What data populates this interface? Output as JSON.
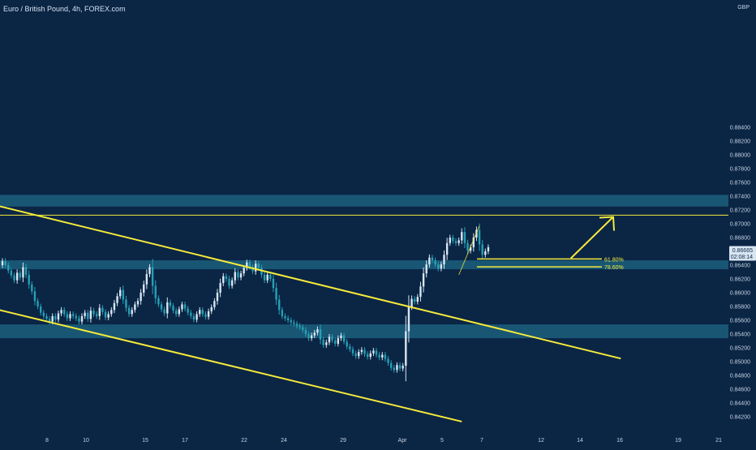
{
  "header": {
    "title": "Euro / British Pound, 4h, FOREX.com"
  },
  "colors": {
    "background": "#0b2545",
    "zone": "#1b5f7c",
    "trendline": "#f5ea3b",
    "candle_up": "#d8e6f2",
    "candle_down": "#26a0b4",
    "price_tag": "#d8e6f2"
  },
  "chart_data": {
    "type": "candlestick",
    "symbol": "Euro / British Pound",
    "timeframe": "4h",
    "source": "FOREX.com",
    "currency_label": "GBP",
    "ylim": [
      0.841,
      0.8855
    ],
    "y_ticks": [
      "0.88400",
      "0.88200",
      "0.88000",
      "0.87800",
      "0.87600",
      "0.87400",
      "0.87200",
      "0.87000",
      "0.86800",
      "0.86600",
      "0.86400",
      "0.86200",
      "0.86000",
      "0.85800",
      "0.85600",
      "0.85400",
      "0.85200",
      "0.85000",
      "0.84800",
      "0.84600",
      "0.84400",
      "0.84200"
    ],
    "x_ticks": [
      "8",
      "10",
      "15",
      "17",
      "22",
      "24",
      "29",
      "Apr",
      "5",
      "7",
      "12",
      "14",
      "16",
      "19",
      "21"
    ],
    "last_price": "0.86665",
    "countdown": "02:08:14",
    "close": [
      0.8646,
      0.864,
      0.8632,
      0.8625,
      0.8618,
      0.8629,
      0.8622,
      0.8637,
      0.8626,
      0.8612,
      0.8602,
      0.8588,
      0.858,
      0.8571,
      0.8566,
      0.8562,
      0.8558,
      0.8566,
      0.8561,
      0.857,
      0.8575,
      0.8569,
      0.8563,
      0.8569,
      0.8566,
      0.8563,
      0.8558,
      0.8566,
      0.8571,
      0.8562,
      0.8574,
      0.8569,
      0.8566,
      0.8578,
      0.8572,
      0.8564,
      0.8569,
      0.8575,
      0.8585,
      0.8595,
      0.8604,
      0.859,
      0.8578,
      0.8569,
      0.8575,
      0.8583,
      0.8588,
      0.86,
      0.8612,
      0.8627,
      0.8637,
      0.861,
      0.8592,
      0.8583,
      0.8576,
      0.857,
      0.8586,
      0.8581,
      0.8574,
      0.8569,
      0.8576,
      0.8583,
      0.8577,
      0.8571,
      0.8566,
      0.8561,
      0.8569,
      0.8575,
      0.8569,
      0.8565,
      0.8573,
      0.8579,
      0.8588,
      0.86,
      0.8614,
      0.8624,
      0.862,
      0.861,
      0.8618,
      0.863,
      0.8622,
      0.8628,
      0.8636,
      0.8644,
      0.8637,
      0.8631,
      0.8642,
      0.8636,
      0.8626,
      0.8618,
      0.8626,
      0.862,
      0.8607,
      0.859,
      0.8575,
      0.8566,
      0.8563,
      0.856,
      0.8557,
      0.8555,
      0.8552,
      0.855,
      0.8546,
      0.854,
      0.8534,
      0.8538,
      0.8542,
      0.8547,
      0.8532,
      0.8524,
      0.8528,
      0.8536,
      0.8531,
      0.8526,
      0.8534,
      0.8538,
      0.8529,
      0.8522,
      0.8518,
      0.8512,
      0.8508,
      0.8514,
      0.8517,
      0.8511,
      0.8507,
      0.8512,
      0.8516,
      0.851,
      0.8506,
      0.851,
      0.8504,
      0.8498,
      0.8491,
      0.8488,
      0.8495,
      0.849,
      0.8494,
      0.8544,
      0.858,
      0.8591,
      0.8587,
      0.8594,
      0.8609,
      0.8628,
      0.8641,
      0.8651,
      0.8647,
      0.8641,
      0.8635,
      0.8641,
      0.8655,
      0.8672,
      0.868,
      0.8675,
      0.8672,
      0.8676,
      0.8688,
      0.8672,
      0.8661,
      0.8666,
      0.868,
      0.8691,
      0.867,
      0.8655,
      0.866,
      0.8666
    ],
    "shaded_zones": [
      {
        "from": 0.8725,
        "to": 0.8742
      },
      {
        "from": 0.8634,
        "to": 0.8647
      },
      {
        "from": 0.8534,
        "to": 0.8554
      }
    ],
    "horizontal_line": 0.87125,
    "channel_lines": [
      {
        "from": {
          "x_index": -12,
          "y": 0.8737
        },
        "to": {
          "x_index": 210,
          "y": 0.85045
        }
      },
      {
        "from": {
          "x_index": -12,
          "y": 0.85862
        },
        "to": {
          "x_index": 156,
          "y": 0.8413
        }
      }
    ],
    "fib_levels": [
      {
        "label": "61.80%",
        "value": 0.8649
      },
      {
        "label": "78.60%",
        "value": 0.86375
      }
    ],
    "projection_arrow": {
      "from": {
        "x_index": 160,
        "y": 0.865
      },
      "to": {
        "x_index": 172,
        "y": 0.871
      }
    },
    "grid": false,
    "legend": "none"
  }
}
